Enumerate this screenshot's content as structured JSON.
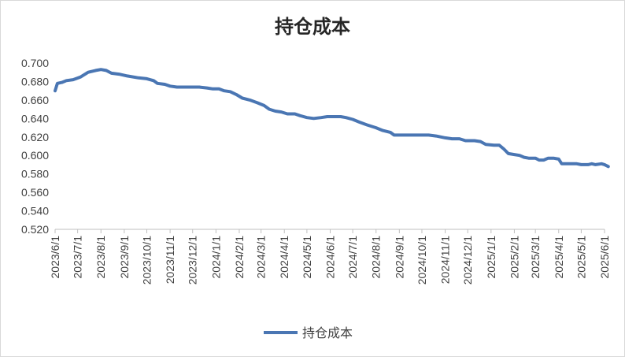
{
  "chart_data": {
    "type": "line",
    "title": "持仓成本",
    "ylim": [
      0.52,
      0.7
    ],
    "yticks": [
      "0.700",
      "0.680",
      "0.660",
      "0.640",
      "0.620",
      "0.600",
      "0.580",
      "0.560",
      "0.540",
      "0.520"
    ],
    "xticks": [
      "2023/6/1",
      "2023/7/1",
      "2023/8/1",
      "2023/9/1",
      "2023/10/1",
      "2023/11/1",
      "2023/12/1",
      "2024/1/1",
      "2024/2/1",
      "2024/3/1",
      "2024/4/1",
      "2024/5/1",
      "2024/6/1",
      "2024/7/1",
      "2024/8/1",
      "2024/9/1",
      "2024/10/1",
      "2024/11/1",
      "2024/12/1",
      "2025/1/1",
      "2025/2/1",
      "2025/3/1",
      "2025/4/1",
      "2025/5/1",
      "2025/6/1"
    ],
    "grid": false,
    "legend": "bottom",
    "series": [
      {
        "name": "持仓成本",
        "color": "#4a76b3",
        "points": [
          [
            "2023/6/1",
            0.67
          ],
          [
            "2023/6/4",
            0.678
          ],
          [
            "2023/6/10",
            0.679
          ],
          [
            "2023/6/16",
            0.681
          ],
          [
            "2023/6/25",
            0.682
          ],
          [
            "2023/7/5",
            0.685
          ],
          [
            "2023/7/15",
            0.69
          ],
          [
            "2023/7/25",
            0.692
          ],
          [
            "2023/8/1",
            0.693
          ],
          [
            "2023/8/8",
            0.692
          ],
          [
            "2023/8/15",
            0.689
          ],
          [
            "2023/8/25",
            0.688
          ],
          [
            "2023/9/5",
            0.686
          ],
          [
            "2023/9/20",
            0.684
          ],
          [
            "2023/10/1",
            0.683
          ],
          [
            "2023/10/10",
            0.681
          ],
          [
            "2023/10/15",
            0.678
          ],
          [
            "2023/10/25",
            0.677
          ],
          [
            "2023/11/1",
            0.675
          ],
          [
            "2023/11/10",
            0.674
          ],
          [
            "2023/11/25",
            0.674
          ],
          [
            "2023/12/10",
            0.674
          ],
          [
            "2023/12/20",
            0.673
          ],
          [
            "2023/12/28",
            0.672
          ],
          [
            "2024/1/5",
            0.672
          ],
          [
            "2024/1/12",
            0.67
          ],
          [
            "2024/1/20",
            0.669
          ],
          [
            "2024/1/28",
            0.666
          ],
          [
            "2024/2/5",
            0.662
          ],
          [
            "2024/2/15",
            0.66
          ],
          [
            "2024/2/25",
            0.657
          ],
          [
            "2024/3/5",
            0.654
          ],
          [
            "2024/3/12",
            0.65
          ],
          [
            "2024/3/20",
            0.648
          ],
          [
            "2024/3/28",
            0.647
          ],
          [
            "2024/4/5",
            0.645
          ],
          [
            "2024/4/15",
            0.645
          ],
          [
            "2024/4/22",
            0.643
          ],
          [
            "2024/5/1",
            0.641
          ],
          [
            "2024/5/10",
            0.64
          ],
          [
            "2024/5/20",
            0.641
          ],
          [
            "2024/5/28",
            0.642
          ],
          [
            "2024/6/5",
            0.642
          ],
          [
            "2024/6/15",
            0.642
          ],
          [
            "2024/6/22",
            0.641
          ],
          [
            "2024/7/1",
            0.639
          ],
          [
            "2024/7/10",
            0.636
          ],
          [
            "2024/7/20",
            0.633
          ],
          [
            "2024/8/1",
            0.63
          ],
          [
            "2024/8/10",
            0.627
          ],
          [
            "2024/8/20",
            0.625
          ],
          [
            "2024/8/25",
            0.622
          ],
          [
            "2024/9/5",
            0.622
          ],
          [
            "2024/9/20",
            0.622
          ],
          [
            "2024/10/1",
            0.622
          ],
          [
            "2024/10/10",
            0.622
          ],
          [
            "2024/10/20",
            0.621
          ],
          [
            "2024/11/1",
            0.619
          ],
          [
            "2024/11/10",
            0.618
          ],
          [
            "2024/11/20",
            0.618
          ],
          [
            "2024/11/28",
            0.616
          ],
          [
            "2024/12/10",
            0.616
          ],
          [
            "2024/12/18",
            0.615
          ],
          [
            "2024/12/25",
            0.612
          ],
          [
            "2025/1/5",
            0.611
          ],
          [
            "2025/1/12",
            0.611
          ],
          [
            "2025/1/18",
            0.607
          ],
          [
            "2025/1/24",
            0.602
          ],
          [
            "2025/2/1",
            0.601
          ],
          [
            "2025/2/8",
            0.6
          ],
          [
            "2025/2/14",
            0.598
          ],
          [
            "2025/2/20",
            0.597
          ],
          [
            "2025/3/1",
            0.597
          ],
          [
            "2025/3/6",
            0.595
          ],
          [
            "2025/3/12",
            0.595
          ],
          [
            "2025/3/18",
            0.597
          ],
          [
            "2025/3/25",
            0.597
          ],
          [
            "2025/4/1",
            0.596
          ],
          [
            "2025/4/5",
            0.591
          ],
          [
            "2025/4/15",
            0.591
          ],
          [
            "2025/4/25",
            0.591
          ],
          [
            "2025/5/1",
            0.59
          ],
          [
            "2025/5/10",
            0.59
          ],
          [
            "2025/5/15",
            0.591
          ],
          [
            "2025/5/20",
            0.59
          ],
          [
            "2025/5/28",
            0.591
          ],
          [
            "2025/6/1",
            0.59
          ],
          [
            "2025/6/6",
            0.588
          ]
        ]
      }
    ]
  }
}
